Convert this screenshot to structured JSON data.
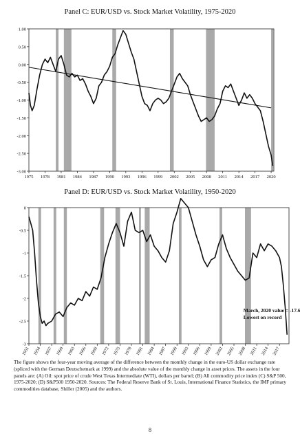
{
  "page_number": "8",
  "caption": "The figure shows the four-year moving average of the difference between the monthly change in the euro-US dollar exchange rate (spliced with the German Deutschemark at 1999) and the absolute value of the monthly change in asset prices. The assets in the four panels are: (A) Oil: spot price of crude West Texas Intermediate (WTI), dollars per barrel; (B) All commodity price index (C) S&P 500, 1975-2020; (D) S&P500 1950-2020. Sources: The Federal Reserve Bank of St. Louis, International Finance Statistics, the IMF primary commodities database, Shiller (2005) and the authors.",
  "chart_data": [
    {
      "type": "line",
      "title": "Panel C: EUR/USD vs. Stock Market Volatility, 1975-2020",
      "xlabel": "",
      "ylabel": "",
      "xlim": [
        1975,
        2020.5
      ],
      "ylim": [
        -3.0,
        1.0
      ],
      "y_ticks": [
        "1.00",
        "0.50",
        "0.00",
        "-0.50",
        "-1.00",
        "-1.50",
        "-2.00",
        "-2.50",
        "-3.00"
      ],
      "y_tick_values": [
        1.0,
        0.5,
        0.0,
        -0.5,
        -1.0,
        -1.5,
        -2.0,
        -2.5,
        -3.0
      ],
      "x_ticks": [
        "1975",
        "1978",
        "1981",
        "1984",
        "1987",
        "1990",
        "1993",
        "1996",
        "1999",
        "2002",
        "2005",
        "2008",
        "2011",
        "2014",
        "2017",
        "2020"
      ],
      "recession_bands": [
        [
          1980.0,
          1980.5
        ],
        [
          1981.5,
          1982.9
        ],
        [
          1990.5,
          1991.2
        ],
        [
          2001.2,
          2001.9
        ],
        [
          2007.9,
          2009.5
        ],
        [
          2020.0,
          2020.4
        ]
      ],
      "trend_line": {
        "x": [
          1975,
          2020
        ],
        "y": [
          -0.08,
          -1.22
        ]
      },
      "series": [
        {
          "x": [
            1975,
            1975.3,
            1975.6,
            1976,
            1976.5,
            1977,
            1977.5,
            1978,
            1978.5,
            1979,
            1979.5,
            1980,
            1980.5,
            1981,
            1981.5,
            1982,
            1982.5,
            1983,
            1983.5,
            1984,
            1984.5,
            1985,
            1985.5,
            1986,
            1986.5,
            1987,
            1987.5,
            1988,
            1988.5,
            1989,
            1989.5,
            1990,
            1990.5,
            1991,
            1991.5,
            1992,
            1992.5,
            1993,
            1993.5,
            1994,
            1994.5,
            1995,
            1995.5,
            1996,
            1996.5,
            1997,
            1997.5,
            1998,
            1998.5,
            1999,
            1999.5,
            2000,
            2000.5,
            2001,
            2001.5,
            2002,
            2002.5,
            2003,
            2003.5,
            2004,
            2004.5,
            2005,
            2005.5,
            2006,
            2006.5,
            2007,
            2007.5,
            2008,
            2008.5,
            2009,
            2009.5,
            2010,
            2010.5,
            2011,
            2011.5,
            2012,
            2012.5,
            2013,
            2013.5,
            2014,
            2014.5,
            2015,
            2015.5,
            2016,
            2016.5,
            2017,
            2017.5,
            2018,
            2018.5,
            2019,
            2019.5,
            2020,
            2020.3
          ],
          "y": [
            -0.8,
            -1.15,
            -1.3,
            -1.15,
            -0.7,
            -0.3,
            0.0,
            0.15,
            0.05,
            0.2,
            0.0,
            -0.2,
            0.15,
            0.25,
            0.0,
            -0.3,
            -0.35,
            -0.25,
            -0.35,
            -0.3,
            -0.45,
            -0.4,
            -0.55,
            -0.75,
            -0.9,
            -1.1,
            -0.95,
            -0.6,
            -0.5,
            -0.3,
            -0.2,
            -0.05,
            0.2,
            0.3,
            0.55,
            0.75,
            0.95,
            0.85,
            0.6,
            0.35,
            0.15,
            -0.2,
            -0.55,
            -0.9,
            -1.1,
            -1.15,
            -1.3,
            -1.1,
            -1.0,
            -0.95,
            -1.0,
            -1.1,
            -1.05,
            -0.95,
            -0.75,
            -0.55,
            -0.35,
            -0.25,
            -0.4,
            -0.5,
            -0.6,
            -0.85,
            -1.05,
            -1.25,
            -1.45,
            -1.6,
            -1.55,
            -1.5,
            -1.6,
            -1.55,
            -1.45,
            -1.25,
            -1.1,
            -0.75,
            -0.6,
            -0.65,
            -0.55,
            -0.75,
            -0.95,
            -1.15,
            -1.0,
            -0.8,
            -0.95,
            -0.85,
            -0.95,
            -1.1,
            -1.2,
            -1.3,
            -1.6,
            -1.95,
            -2.3,
            -2.55,
            -2.85
          ]
        }
      ]
    },
    {
      "type": "line",
      "title": "Panel D: EUR/USD vs. Stock Market Volatility, 1950-2020",
      "xlabel": "",
      "ylabel": "",
      "xlim": [
        1951,
        2019.5
      ],
      "ylim": [
        -3.0,
        0.0
      ],
      "y_ticks": [
        "0",
        "-0.5",
        "-1",
        "-1.5",
        "-2",
        "-2.5",
        "-3"
      ],
      "y_tick_values": [
        0,
        -0.5,
        -1.0,
        -1.5,
        -2.0,
        -2.5,
        -3.0
      ],
      "x_ticks": [
        "1951",
        "1954",
        "1957",
        "1960",
        "1963",
        "1966",
        "1969",
        "1972",
        "1975",
        "1978",
        "1981",
        "1984",
        "1987",
        "1990",
        "1993",
        "1996",
        "1999",
        "2002",
        "2005",
        "2008",
        "2011",
        "2014",
        "2017"
      ],
      "recession_bands": [
        [
          1953.5,
          1954.2
        ],
        [
          1957.5,
          1958.2
        ],
        [
          1960.2,
          1961.0
        ],
        [
          1969.8,
          1970.8
        ],
        [
          1973.8,
          1975.0
        ],
        [
          1980.0,
          1980.5
        ],
        [
          1981.5,
          1982.8
        ],
        [
          1990.5,
          1991.2
        ],
        [
          2001.2,
          2001.9
        ],
        [
          2007.9,
          2009.5
        ]
      ],
      "annotation": {
        "line1": "March, 2020 value = -17.6",
        "line2": "Lowest on record",
        "x": 2007.5,
        "y": -2.3
      },
      "series": [
        {
          "x": [
            1951,
            1951.5,
            1952,
            1952.5,
            1953,
            1953.5,
            1954,
            1954.5,
            1955,
            1955.5,
            1956,
            1957,
            1958,
            1959,
            1960,
            1961,
            1962,
            1963,
            1964,
            1965,
            1966,
            1967,
            1968,
            1969,
            1970,
            1971,
            1972,
            1973,
            1974,
            1975,
            1976,
            1977,
            1978,
            1978.5,
            1979,
            1980,
            1981,
            1982,
            1983,
            1984,
            1985,
            1986,
            1987,
            1988,
            1989,
            1990,
            1991,
            1992,
            1993,
            1994,
            1995,
            1996,
            1997,
            1998,
            1999,
            2000,
            2001,
            2002,
            2003,
            2004,
            2005,
            2006,
            2007,
            2008,
            2009,
            2010,
            2011,
            2012,
            2013,
            2014,
            2015,
            2016,
            2017,
            2017.5,
            2018,
            2018.5,
            2019
          ],
          "y": [
            -0.2,
            -0.35,
            -0.5,
            -1.0,
            -1.6,
            -2.1,
            -2.4,
            -2.55,
            -2.5,
            -2.6,
            -2.55,
            -2.5,
            -2.35,
            -2.3,
            -2.4,
            -2.2,
            -2.1,
            -2.15,
            -2.0,
            -2.05,
            -1.85,
            -1.95,
            -1.75,
            -1.8,
            -1.55,
            -1.1,
            -0.8,
            -0.55,
            -0.35,
            -0.55,
            -0.85,
            -0.3,
            -0.1,
            -0.3,
            -0.5,
            -0.55,
            -0.5,
            -0.75,
            -0.6,
            -0.85,
            -0.95,
            -1.1,
            -1.2,
            -0.95,
            -0.35,
            -0.1,
            0.2,
            0.1,
            0.0,
            -0.3,
            -0.6,
            -0.85,
            -1.15,
            -1.3,
            -1.15,
            -1.1,
            -0.8,
            -0.6,
            -0.9,
            -1.1,
            -1.25,
            -1.4,
            -1.5,
            -1.6,
            -1.55,
            -1.0,
            -1.1,
            -0.8,
            -0.95,
            -0.8,
            -0.85,
            -0.95,
            -1.1,
            -1.3,
            -1.7,
            -2.2,
            -2.8
          ]
        }
      ]
    }
  ]
}
